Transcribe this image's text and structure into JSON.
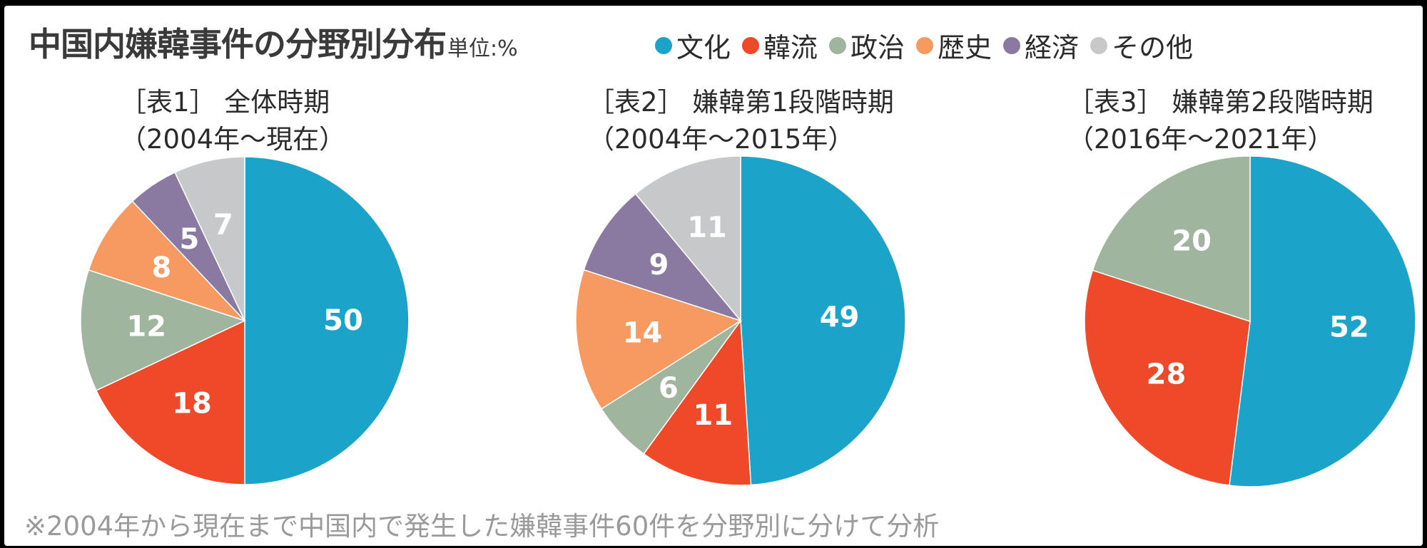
{
  "title": "中国内嫌韓事件の分野別分布",
  "unit": "単位:%",
  "legend": [
    {
      "label": "文化",
      "color": "#1ba3c9"
    },
    {
      "label": "韓流",
      "color": "#ee4a2a"
    },
    {
      "label": "政治",
      "color": "#9fb59d"
    },
    {
      "label": "歴史",
      "color": "#f69a61"
    },
    {
      "label": "経済",
      "color": "#8a7aa2"
    },
    {
      "label": "その他",
      "color": "#c7c8ca"
    }
  ],
  "footnote": "※2004年から現在まで中国内で発生した嫌韓事件60件を分野別に分けて分析",
  "chart_data": [
    {
      "type": "pie",
      "title_line1": "［表1］ 全体時期",
      "title_line2": "（2004年～現在）",
      "categories": [
        "文化",
        "韓流",
        "政治",
        "歴史",
        "経済",
        "その他"
      ],
      "values": [
        50,
        18,
        12,
        8,
        5,
        7
      ]
    },
    {
      "type": "pie",
      "title_line1": "［表2］ 嫌韓第1段階時期",
      "title_line2": "（2004年～2015年）",
      "categories": [
        "文化",
        "韓流",
        "政治",
        "歴史",
        "経済",
        "その他"
      ],
      "values": [
        49,
        11,
        6,
        14,
        9,
        11
      ]
    },
    {
      "type": "pie",
      "title_line1": "［表3］ 嫌韓第2段階時期",
      "title_line2": "（2016年～2021年）",
      "categories": [
        "文化",
        "韓流",
        "政治"
      ],
      "values": [
        52,
        28,
        20
      ]
    }
  ]
}
